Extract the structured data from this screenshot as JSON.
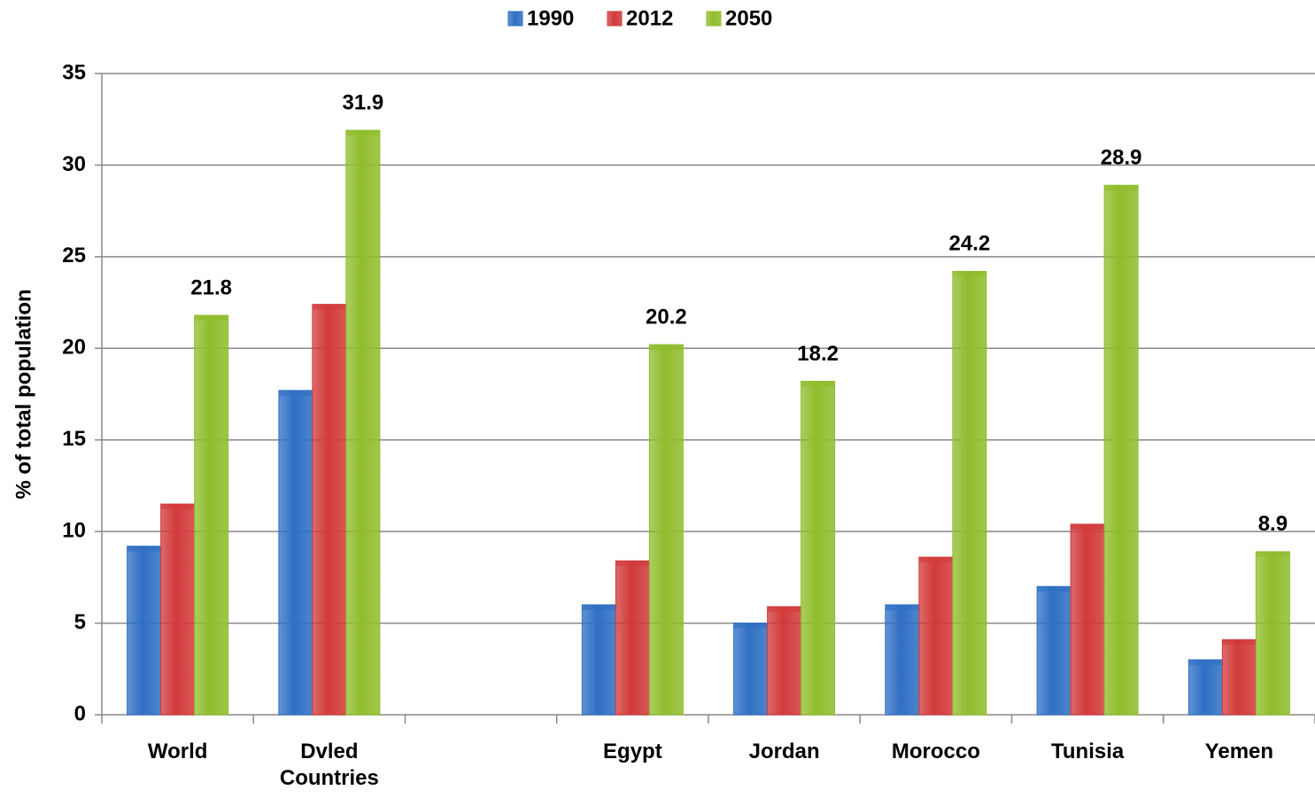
{
  "chart_data": {
    "type": "bar",
    "y_axis_label": "% of total population",
    "categories": [
      "World",
      "Dvled Countries",
      null,
      "Egypt",
      "Jordan",
      "Morocco",
      "Tunisia",
      "Yemen"
    ],
    "series": [
      {
        "name": "1990",
        "color": "#2f6fc4",
        "values": [
          9.2,
          17.7,
          null,
          6.0,
          5.0,
          6.0,
          7.0,
          3.0
        ]
      },
      {
        "name": "2012",
        "color": "#d23a3a",
        "values": [
          11.5,
          22.4,
          null,
          8.4,
          5.9,
          8.6,
          10.4,
          4.1
        ]
      },
      {
        "name": "2050",
        "color": "#8fbd2c",
        "values": [
          21.8,
          31.9,
          null,
          20.2,
          18.2,
          24.2,
          28.9,
          8.9
        ],
        "data_labels": true
      }
    ],
    "ylim": [
      0,
      35
    ],
    "yticks": [
      0,
      5,
      10,
      15,
      20,
      25,
      30,
      35
    ],
    "grid": true,
    "legend": "top"
  }
}
